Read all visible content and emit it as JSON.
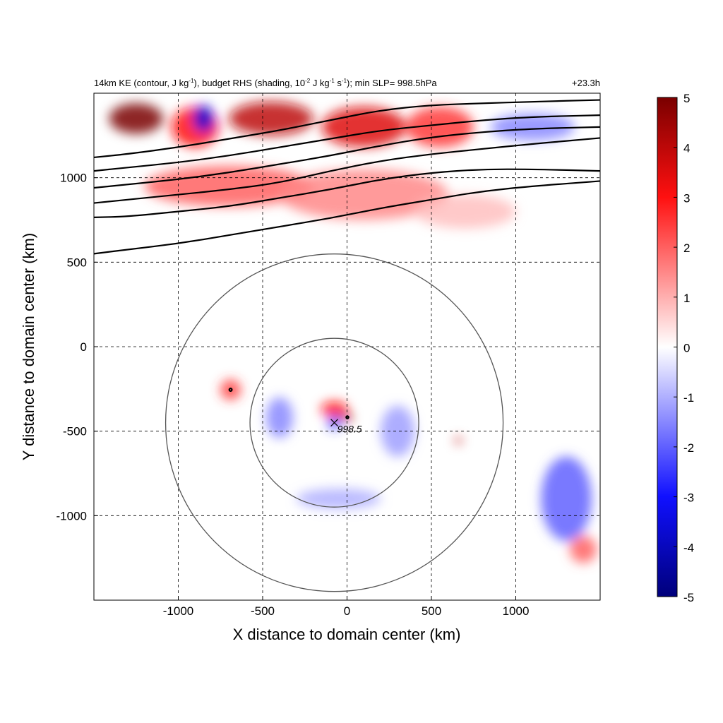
{
  "chart_data": {
    "type": "heatmap",
    "title_parts": {
      "p1": "14km KE (contour, J kg",
      "s1": "-1",
      "p2": "), budget RHS (shading, 10",
      "s2": "-2",
      "p3": " J kg",
      "s3": "-1",
      "p4": " s",
      "s4": "-1",
      "p5": "); min SLP= 998.5hPa"
    },
    "time_label": "+23.3h",
    "xlabel": "X distance to domain center (km)",
    "ylabel": "Y distance to domain center (km)",
    "xlim": [
      -1500,
      1500
    ],
    "ylim": [
      -1500,
      1500
    ],
    "x_ticks": [
      -1000,
      -500,
      0,
      500,
      1000
    ],
    "y_ticks": [
      1000,
      500,
      0,
      -500,
      -1000
    ],
    "x_tick_labels": [
      "-1000",
      "-500",
      "0",
      "500",
      "1000"
    ],
    "y_tick_labels": [
      "1000",
      "500",
      "0",
      "-500",
      "-1000"
    ],
    "grid": "dashed",
    "colorbar": {
      "range": [
        -5,
        5
      ],
      "ticks": [
        5,
        4,
        3,
        2,
        1,
        0,
        -1,
        -2,
        -3,
        -4,
        -5
      ],
      "tick_labels": [
        "5",
        "4",
        "3",
        "2",
        "1",
        "0",
        "-1",
        "-2",
        "-3",
        "-4",
        "-5"
      ],
      "colors": {
        "top": "#7a0000",
        "mid_high": "#ff2020",
        "center": "#ffffff",
        "mid_low": "#2020ff",
        "bottom": "#00007a"
      }
    },
    "storm_center": {
      "x": -75,
      "y": -450,
      "label": "998.5"
    },
    "range_rings_km": [
      500,
      1000
    ],
    "ke_contours": [
      {
        "x": [
          -1500,
          -1300,
          -1000,
          -700,
          -400,
          -100,
          200,
          500,
          800,
          1100,
          1500
        ],
        "y": [
          550,
          575,
          610,
          660,
          710,
          760,
          820,
          870,
          920,
          950,
          980
        ]
      },
      {
        "x": [
          -1500,
          -1300,
          -1000,
          -700,
          -400,
          -100,
          200,
          500,
          800,
          1100,
          1500
        ],
        "y": [
          765,
          770,
          800,
          830,
          880,
          930,
          990,
          1030,
          1050,
          1050,
          1040
        ]
      },
      {
        "x": [
          -1500,
          -1300,
          -1000,
          -700,
          -400,
          -100,
          200,
          500,
          800,
          1100,
          1500
        ],
        "y": [
          850,
          870,
          900,
          930,
          970,
          1040,
          1100,
          1140,
          1170,
          1200,
          1235
        ]
      },
      {
        "x": [
          -1500,
          -1300,
          -1000,
          -700,
          -400,
          -100,
          200,
          500,
          800,
          1100,
          1500
        ],
        "y": [
          940,
          960,
          990,
          1030,
          1080,
          1130,
          1190,
          1240,
          1270,
          1290,
          1300
        ]
      },
      {
        "x": [
          -1500,
          -1300,
          -1000,
          -700,
          -400,
          -100,
          200,
          500,
          800,
          1100,
          1500
        ],
        "y": [
          1040,
          1060,
          1090,
          1130,
          1180,
          1230,
          1280,
          1310,
          1340,
          1360,
          1370
        ]
      },
      {
        "x": [
          -1500,
          -1300,
          -1000,
          -700,
          -400,
          -100,
          200,
          500,
          800,
          1100,
          1500
        ],
        "y": [
          1120,
          1140,
          1180,
          1230,
          1280,
          1340,
          1400,
          1430,
          1440,
          1450,
          1460
        ]
      }
    ],
    "ke_small_contours": [
      {
        "x": -690,
        "y": -255,
        "r": 28
      },
      {
        "x": 2,
        "y": -418,
        "r": 25
      }
    ],
    "shading_features": [
      {
        "x": -1250,
        "y": 1350,
        "v": 5,
        "rx": 160,
        "ry": 90
      },
      {
        "x": -900,
        "y": 1300,
        "v": 3,
        "rx": 140,
        "ry": 120
      },
      {
        "x": -850,
        "y": 1350,
        "v": -3.5,
        "rx": 60,
        "ry": 80
      },
      {
        "x": -450,
        "y": 1350,
        "v": 4,
        "rx": 250,
        "ry": 100
      },
      {
        "x": 100,
        "y": 1300,
        "v": 3.5,
        "rx": 250,
        "ry": 120
      },
      {
        "x": 550,
        "y": 1300,
        "v": 2.5,
        "rx": 200,
        "ry": 120
      },
      {
        "x": 1100,
        "y": 1300,
        "v": -1.5,
        "rx": 250,
        "ry": 80
      },
      {
        "x": -700,
        "y": 950,
        "v": 2,
        "rx": 500,
        "ry": 120
      },
      {
        "x": 100,
        "y": 900,
        "v": 1.5,
        "rx": 500,
        "ry": 150
      },
      {
        "x": 700,
        "y": 800,
        "v": 0.8,
        "rx": 300,
        "ry": 100
      },
      {
        "x": -75,
        "y": -370,
        "v": 3,
        "rx": 80,
        "ry": 45
      },
      {
        "x": -75,
        "y": -450,
        "v": -2.5,
        "rx": 40,
        "ry": 40
      },
      {
        "x": 0,
        "y": -420,
        "v": 4.5,
        "rx": 30,
        "ry": 25
      },
      {
        "x": -690,
        "y": -255,
        "v": 2.5,
        "rx": 60,
        "ry": 60
      },
      {
        "x": 660,
        "y": -555,
        "v": 4,
        "rx": 20,
        "ry": 20
      },
      {
        "x": -400,
        "y": -420,
        "v": -1.5,
        "rx": 80,
        "ry": 120
      },
      {
        "x": 300,
        "y": -500,
        "v": -1.2,
        "rx": 100,
        "ry": 150
      },
      {
        "x": -50,
        "y": -900,
        "v": -1,
        "rx": 250,
        "ry": 60
      },
      {
        "x": 1300,
        "y": -900,
        "v": -2,
        "rx": 150,
        "ry": 250
      },
      {
        "x": 1400,
        "y": -1200,
        "v": 2,
        "rx": 80,
        "ry": 80
      }
    ]
  }
}
